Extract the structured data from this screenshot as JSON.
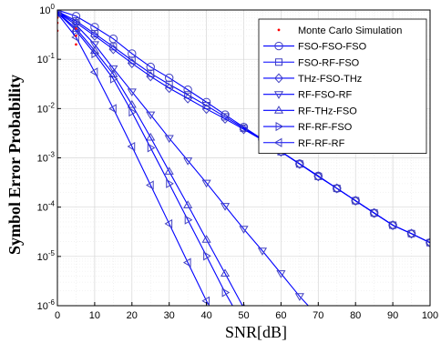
{
  "chart_data": {
    "type": "line",
    "title": "",
    "xlabel": "SNR[dB]",
    "ylabel": "Symbol Error Probability",
    "xlim": [
      0,
      100
    ],
    "ylim": [
      1e-06,
      1
    ],
    "yscale": "log",
    "grid": true,
    "legend_position": "top-right",
    "x_ticks": [
      0,
      10,
      20,
      30,
      40,
      50,
      60,
      70,
      80,
      90,
      100
    ],
    "y_ticks": [
      {
        "base": "10",
        "exp": "0"
      },
      {
        "base": "10",
        "exp": "-1"
      },
      {
        "base": "10",
        "exp": "-2"
      },
      {
        "base": "10",
        "exp": "-3"
      },
      {
        "base": "10",
        "exp": "-4"
      },
      {
        "base": "10",
        "exp": "-5"
      },
      {
        "base": "10",
        "exp": "-6"
      }
    ],
    "line_color": "#0000ff",
    "marker_color": "#4040c0",
    "monte_carlo": {
      "name": "Monte Carlo Simulation",
      "color": "#ff0000",
      "points": [
        [
          0,
          0.38
        ],
        [
          0,
          0.55
        ],
        [
          0,
          0.7
        ],
        [
          5,
          0.42
        ],
        [
          5,
          0.3
        ],
        [
          5,
          0.2
        ]
      ]
    },
    "series": [
      {
        "name": "FSO-FSO-FSO",
        "marker": "circle",
        "points": [
          [
            0,
            1.0
          ],
          [
            5,
            0.75
          ],
          [
            10,
            0.45
          ],
          [
            15,
            0.26
          ],
          [
            20,
            0.13
          ],
          [
            25,
            0.07
          ],
          [
            30,
            0.042
          ],
          [
            35,
            0.024
          ],
          [
            40,
            0.0135
          ],
          [
            45,
            0.0075
          ],
          [
            50,
            0.0042
          ],
          [
            55,
            0.0024
          ],
          [
            60,
            0.00135
          ],
          [
            65,
            0.00076
          ],
          [
            70,
            0.00043
          ],
          [
            75,
            0.00024
          ],
          [
            80,
            0.000135
          ],
          [
            85,
            7.6e-05
          ],
          [
            90,
            4.3e-05
          ],
          [
            95,
            2.9e-05
          ],
          [
            100,
            1.9e-05
          ]
        ]
      },
      {
        "name": "FSO-RF-FSO",
        "marker": "square",
        "points": [
          [
            0,
            0.95
          ],
          [
            5,
            0.6
          ],
          [
            10,
            0.33
          ],
          [
            15,
            0.18
          ],
          [
            20,
            0.095
          ],
          [
            25,
            0.052
          ],
          [
            30,
            0.031
          ],
          [
            35,
            0.019
          ],
          [
            40,
            0.0115
          ],
          [
            45,
            0.0068
          ],
          [
            50,
            0.004
          ],
          [
            55,
            0.0023
          ],
          [
            60,
            0.00133
          ],
          [
            65,
            0.00075
          ],
          [
            70,
            0.00042
          ],
          [
            75,
            0.00024
          ],
          [
            80,
            0.000135
          ],
          [
            85,
            7.6e-05
          ],
          [
            90,
            4.3e-05
          ],
          [
            95,
            2.9e-05
          ],
          [
            100,
            1.9e-05
          ]
        ]
      },
      {
        "name": "THz-FSO-THz",
        "marker": "diamond",
        "points": [
          [
            0,
            0.92
          ],
          [
            5,
            0.55
          ],
          [
            10,
            0.3
          ],
          [
            15,
            0.16
          ],
          [
            20,
            0.083
          ],
          [
            25,
            0.045
          ],
          [
            30,
            0.026
          ],
          [
            35,
            0.016
          ],
          [
            40,
            0.0098
          ],
          [
            45,
            0.0062
          ],
          [
            50,
            0.0038
          ],
          [
            55,
            0.0023
          ],
          [
            60,
            0.00133
          ],
          [
            65,
            0.00075
          ],
          [
            70,
            0.00042
          ],
          [
            75,
            0.00024
          ],
          [
            80,
            0.000135
          ],
          [
            85,
            7.6e-05
          ],
          [
            90,
            4.3e-05
          ],
          [
            95,
            2.9e-05
          ],
          [
            100,
            1.9e-05
          ]
        ]
      },
      {
        "name": "RF-FSO-RF",
        "marker": "triangle-down",
        "points": [
          [
            0,
            0.9
          ],
          [
            5,
            0.5
          ],
          [
            10,
            0.2
          ],
          [
            15,
            0.065
          ],
          [
            20,
            0.022
          ],
          [
            25,
            0.0075
          ],
          [
            30,
            0.0025
          ],
          [
            35,
            0.00088
          ],
          [
            40,
            0.00031
          ],
          [
            45,
            0.000105
          ],
          [
            50,
            3.6e-05
          ],
          [
            55,
            1.3e-05
          ],
          [
            60,
            4.5e-06
          ],
          [
            65,
            1.55e-06
          ],
          [
            70,
            6e-07
          ]
        ]
      },
      {
        "name": "RF-THz-FSO",
        "marker": "triangle-up",
        "points": [
          [
            0,
            0.9
          ],
          [
            5,
            0.42
          ],
          [
            10,
            0.15
          ],
          [
            15,
            0.05
          ],
          [
            20,
            0.012
          ],
          [
            25,
            0.0026
          ],
          [
            30,
            0.00053
          ],
          [
            35,
            0.00011
          ],
          [
            40,
            2.2e-05
          ],
          [
            45,
            4.5e-06
          ],
          [
            50,
            9e-07
          ]
        ]
      },
      {
        "name": "RF-RF-FSO",
        "marker": "triangle-right",
        "points": [
          [
            0,
            0.88
          ],
          [
            5,
            0.38
          ],
          [
            10,
            0.13
          ],
          [
            15,
            0.04
          ],
          [
            20,
            0.0085
          ],
          [
            25,
            0.0016
          ],
          [
            30,
            0.0003
          ],
          [
            35,
            5.5e-05
          ],
          [
            40,
            1.02e-05
          ],
          [
            45,
            1.85e-06
          ],
          [
            50,
            4e-07
          ]
        ]
      },
      {
        "name": "RF-RF-RF",
        "marker": "triangle-left",
        "points": [
          [
            0,
            0.85
          ],
          [
            5,
            0.28
          ],
          [
            10,
            0.055
          ],
          [
            15,
            0.01
          ],
          [
            20,
            0.0017
          ],
          [
            25,
            0.00028
          ],
          [
            30,
            4.6e-05
          ],
          [
            35,
            7.5e-06
          ],
          [
            40,
            1.25e-06
          ],
          [
            45,
            3e-07
          ]
        ]
      }
    ]
  }
}
